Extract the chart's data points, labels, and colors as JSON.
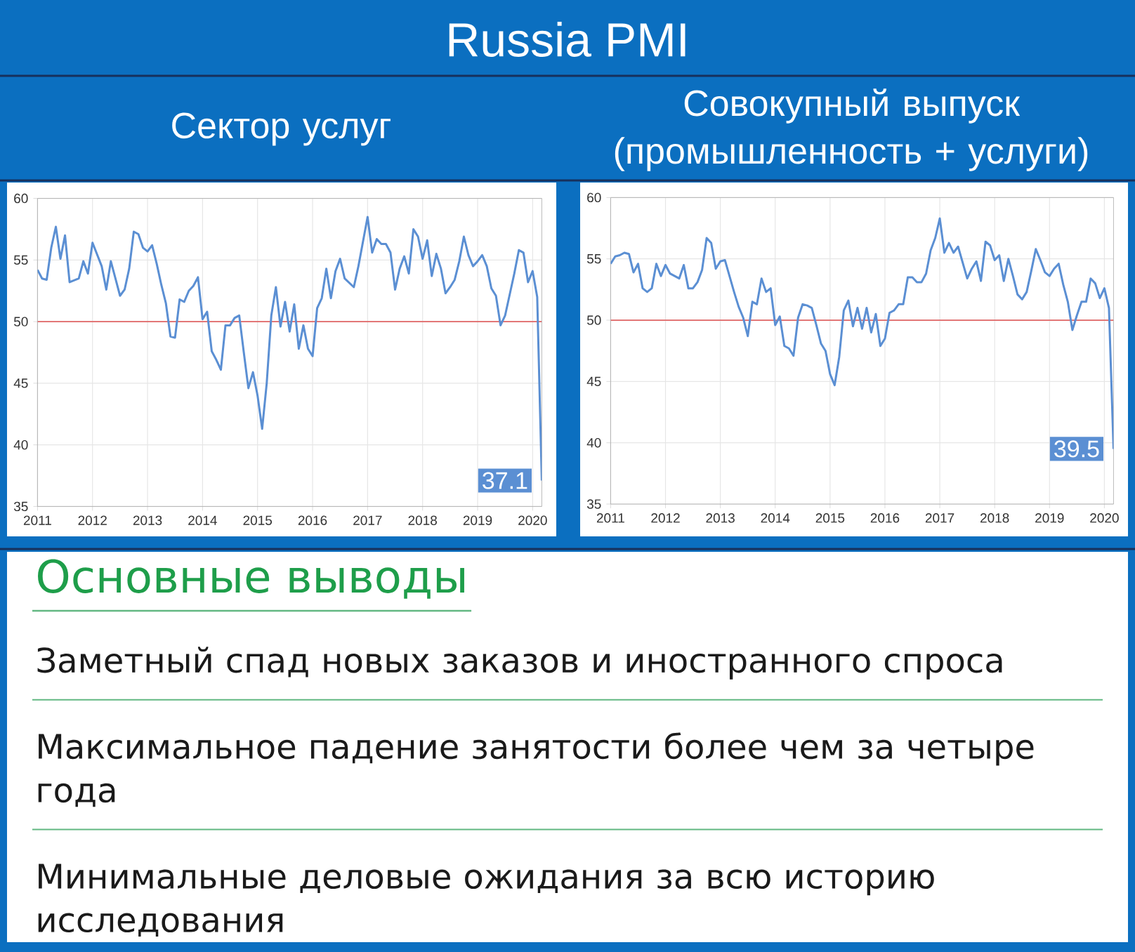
{
  "chart_data": [
    {
      "type": "other",
      "title": "Russia PMI"
    },
    {
      "type": "line",
      "title": "Сектор услуг",
      "x": [
        "2011-01",
        "2011-02",
        "2011-03",
        "2011-04",
        "2011-05",
        "2011-06",
        "2011-07",
        "2011-08",
        "2011-10",
        "2011-11",
        "2011-12",
        "2012-01",
        "2012-03",
        "2012-04",
        "2012-05",
        "2012-06",
        "2012-07",
        "2012-08",
        "2012-09",
        "2012-10",
        "2012-11",
        "2012-12",
        "2013-01",
        "2013-02",
        "2013-03",
        "2013-04",
        "2013-05",
        "2013-06",
        "2013-07",
        "2013-08",
        "2013-09",
        "2013-10",
        "2013-11",
        "2013-12",
        "2014-01",
        "2014-02",
        "2014-03",
        "2014-04",
        "2014-05",
        "2014-06",
        "2014-07",
        "2014-08",
        "2014-09",
        "2014-10",
        "2014-11",
        "2014-12",
        "2015-01",
        "2015-02",
        "2015-03",
        "2015-04",
        "2015-05",
        "2015-06",
        "2015-07",
        "2015-08",
        "2015-09",
        "2015-10",
        "2015-11",
        "2015-12",
        "2016-01",
        "2016-02",
        "2016-03",
        "2016-04",
        "2016-05",
        "2016-06",
        "2016-07",
        "2016-08",
        "2016-10",
        "2016-11",
        "2017-01",
        "2017-02",
        "2017-03",
        "2017-04",
        "2017-05",
        "2017-06",
        "2017-07",
        "2017-08",
        "2017-09",
        "2017-10",
        "2017-11",
        "2017-12",
        "2018-01",
        "2018-02",
        "2018-03",
        "2018-04",
        "2018-05",
        "2018-06",
        "2018-07",
        "2018-08",
        "2018-09",
        "2018-10",
        "2018-11",
        "2018-12",
        "2019-01",
        "2019-02",
        "2019-03",
        "2019-04",
        "2019-05",
        "2019-06",
        "2019-07",
        "2019-08",
        "2019-09",
        "2019-10",
        "2019-11",
        "2019-12",
        "2020-01",
        "2020-02",
        "2020-03"
      ],
      "series": [
        {
          "color": "#5B8FD3",
          "values": [
            54.2,
            53.5,
            53.4,
            56.0,
            57.7,
            55.1,
            57.0,
            53.2,
            53.5,
            54.9,
            53.9,
            56.4,
            54.5,
            52.6,
            54.9,
            53.5,
            52.1,
            52.6,
            54.3,
            57.3,
            57.1,
            56.0,
            55.7,
            56.2,
            54.7,
            53.0,
            51.5,
            48.8,
            48.7,
            51.8,
            51.6,
            52.5,
            52.9,
            53.6,
            50.2,
            50.8,
            47.6,
            46.9,
            46.1,
            49.7,
            49.7,
            50.3,
            50.5,
            47.5,
            44.6,
            45.9,
            44.0,
            41.3,
            45.0,
            50.5,
            52.8,
            49.6,
            51.6,
            49.2,
            51.4,
            47.8,
            49.7,
            47.8,
            47.2,
            51.1,
            51.9,
            54.3,
            51.9,
            54.1,
            55.1,
            53.5,
            52.8,
            54.5,
            58.5,
            55.6,
            56.7,
            56.3,
            56.3,
            55.6,
            52.6,
            54.3,
            55.3,
            53.9,
            57.5,
            56.9,
            55.1,
            56.6,
            53.7,
            55.5,
            54.3,
            52.3,
            52.8,
            53.4,
            54.9,
            56.9,
            55.4,
            54.5,
            54.9,
            55.4,
            54.5,
            52.7,
            52.1,
            49.7,
            50.5,
            52.2,
            53.9,
            55.8,
            55.6,
            53.2,
            54.1,
            52.0,
            37.1
          ]
        }
      ],
      "xlim": [
        "2011-01",
        "2020-03"
      ],
      "xticks": [
        {
          "value": "2011",
          "label": "2011"
        },
        {
          "value": "2012",
          "label": "2012"
        },
        {
          "value": "2013",
          "label": "2013"
        },
        {
          "value": "2014",
          "label": "2014"
        },
        {
          "value": "2015",
          "label": "2015"
        },
        {
          "value": "2016",
          "label": "2016"
        },
        {
          "value": "2017",
          "label": "2017"
        },
        {
          "value": "2018",
          "label": "2018"
        },
        {
          "value": "2019",
          "label": "2019"
        },
        {
          "value": "2020",
          "label": "2020"
        }
      ],
      "ylim": [
        35,
        60
      ],
      "yticks": [
        35,
        40,
        45,
        50,
        55,
        60
      ],
      "grid": true,
      "ref_lines": [
        {
          "axis": "y",
          "value": 50,
          "color": "#E06666"
        }
      ],
      "annotations": [
        {
          "text": "37.1",
          "x": "2020-03",
          "y": 37.1
        }
      ]
    },
    {
      "type": "line",
      "title": "Совокупный выпуск (промышленность + услуги)",
      "x": [
        "2011-01",
        "2011-02",
        "2011-03",
        "2011-04",
        "2011-05",
        "2011-06",
        "2011-07",
        "2011-08",
        "2011-09",
        "2011-10",
        "2011-11",
        "2011-12",
        "2012-01",
        "2012-02",
        "2012-03",
        "2012-04",
        "2012-05",
        "2012-06",
        "2012-07",
        "2012-08",
        "2012-09",
        "2012-10",
        "2012-11",
        "2012-12",
        "2013-01",
        "2013-02",
        "2013-03",
        "2013-04",
        "2013-05",
        "2013-06",
        "2013-07",
        "2013-08",
        "2013-09",
        "2013-10",
        "2013-11",
        "2013-12",
        "2014-01",
        "2014-02",
        "2014-03",
        "2014-04",
        "2014-05",
        "2014-06",
        "2014-07",
        "2014-08",
        "2014-09",
        "2014-10",
        "2014-11",
        "2014-12",
        "2015-01",
        "2015-02",
        "2015-03",
        "2015-04",
        "2015-05",
        "2015-06",
        "2015-07",
        "2015-08",
        "2015-09",
        "2015-10",
        "2015-11",
        "2015-12",
        "2016-01",
        "2016-02",
        "2016-03",
        "2016-04",
        "2016-05",
        "2016-06",
        "2016-07",
        "2016-08",
        "2016-09",
        "2016-10",
        "2016-11",
        "2016-12",
        "2017-01",
        "2017-02",
        "2017-03",
        "2017-04",
        "2017-05",
        "2017-06",
        "2017-07",
        "2017-08",
        "2017-09",
        "2017-10",
        "2017-11",
        "2017-12",
        "2018-01",
        "2018-02",
        "2018-03",
        "2018-04",
        "2018-05",
        "2018-06",
        "2018-07",
        "2018-08",
        "2018-09",
        "2018-10",
        "2018-11",
        "2018-12",
        "2019-01",
        "2019-02",
        "2019-03",
        "2019-04",
        "2019-05",
        "2019-06",
        "2019-07",
        "2019-08",
        "2019-09",
        "2019-10",
        "2019-11",
        "2019-12",
        "2020-01",
        "2020-02",
        "2020-03"
      ],
      "series": [
        {
          "color": "#5B8FD3",
          "values": [
            54.6,
            55.2,
            55.3,
            55.5,
            55.4,
            53.9,
            54.6,
            52.6,
            52.3,
            52.6,
            54.6,
            53.6,
            54.5,
            53.8,
            53.6,
            53.4,
            54.5,
            52.6,
            52.6,
            53.1,
            54.1,
            56.7,
            56.3,
            54.2,
            54.8,
            54.9,
            53.6,
            52.3,
            51.1,
            50.2,
            48.7,
            51.5,
            51.3,
            53.4,
            52.3,
            52.6,
            49.6,
            50.3,
            47.9,
            47.7,
            47.1,
            50.2,
            51.3,
            51.2,
            51.0,
            49.6,
            48.1,
            47.5,
            45.6,
            44.7,
            47.0,
            50.8,
            51.6,
            49.5,
            51.0,
            49.3,
            51.0,
            49.0,
            50.5,
            47.9,
            48.5,
            50.6,
            50.8,
            51.3,
            51.3,
            53.5,
            53.5,
            53.1,
            53.1,
            53.8,
            55.7,
            56.7,
            58.3,
            55.5,
            56.3,
            55.5,
            56.0,
            54.7,
            53.4,
            54.2,
            54.8,
            53.2,
            56.4,
            56.1,
            54.9,
            55.3,
            53.2,
            55.0,
            53.6,
            52.1,
            51.7,
            52.3,
            54.0,
            55.8,
            54.9,
            53.9,
            53.6,
            54.2,
            54.6,
            52.9,
            51.5,
            49.2,
            50.4,
            51.5,
            51.5,
            53.4,
            53.0,
            51.8,
            52.6,
            51.0,
            39.5
          ]
        }
      ],
      "xlim": [
        "2011-01",
        "2020-03"
      ],
      "xticks": [
        {
          "value": "2011",
          "label": "2011"
        },
        {
          "value": "2012",
          "label": "2012"
        },
        {
          "value": "2013",
          "label": "2013"
        },
        {
          "value": "2014",
          "label": "2014"
        },
        {
          "value": "2015",
          "label": "2015"
        },
        {
          "value": "2016",
          "label": "2016"
        },
        {
          "value": "2017",
          "label": "2017"
        },
        {
          "value": "2018",
          "label": "2018"
        },
        {
          "value": "2019",
          "label": "2019"
        },
        {
          "value": "2020",
          "label": "2020"
        }
      ],
      "ylim": [
        35,
        60
      ],
      "yticks": [
        35,
        40,
        45,
        50,
        55,
        60
      ],
      "grid": true,
      "ref_lines": [
        {
          "axis": "y",
          "value": 50,
          "color": "#E06666"
        }
      ],
      "annotations": [
        {
          "text": "39.5",
          "x": "2020-03",
          "y": 39.5
        }
      ]
    },
    {
      "type": "other",
      "title": "Основные выводы",
      "annotations": [
        "Заметный спад новых заказов и иностранного спроса",
        "Максимальное падение занятости более чем за четыре года",
        "Минимальные деловые ожидания за всю историю исследования"
      ]
    }
  ]
}
